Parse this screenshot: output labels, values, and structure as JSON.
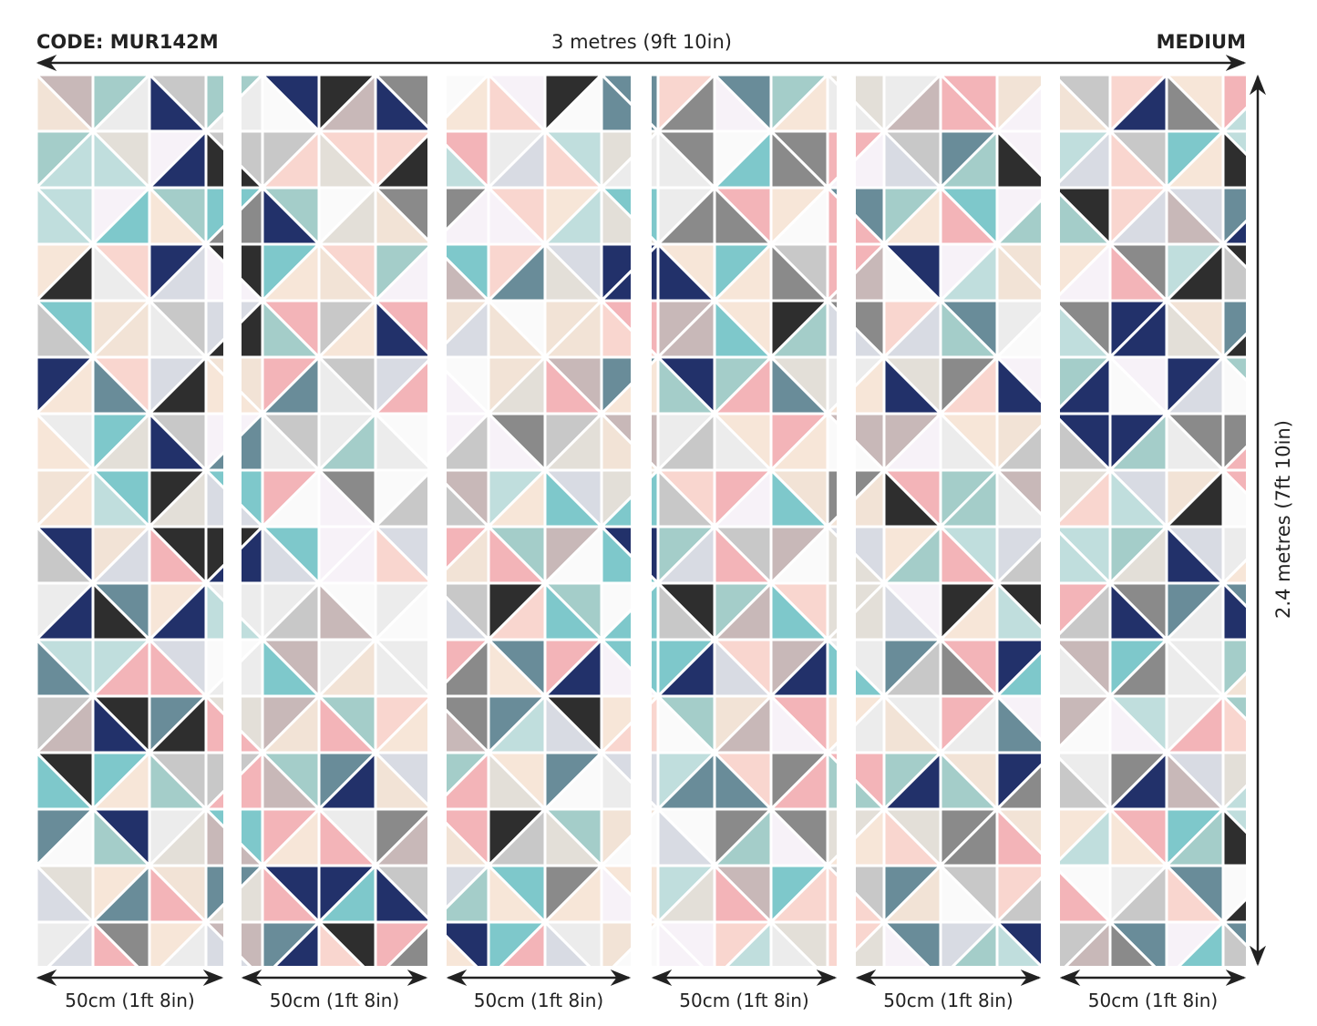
{
  "header": {
    "code": "CODE: MUR142M",
    "total_width": "3 metres (9ft 10in)",
    "size": "MEDIUM"
  },
  "total_height": "2.4 metres (7ft 10in)",
  "panels": [
    {
      "width_label": "50cm (1ft 8in)"
    },
    {
      "width_label": "50cm (1ft 8in)"
    },
    {
      "width_label": "50cm (1ft 8in)"
    },
    {
      "width_label": "50cm (1ft 8in)"
    },
    {
      "width_label": "50cm (1ft 8in)"
    },
    {
      "width_label": "50cm (1ft 8in)"
    }
  ],
  "palette": [
    "#22316a",
    "#2e2e2e",
    "#8a8a8a",
    "#c8c8c8",
    "#ececec",
    "#e3dfd8",
    "#f7e6d8",
    "#f2e3d6",
    "#f7f2f8",
    "#a4cdc9",
    "#c0dedd",
    "#7ec8cb",
    "#698c99",
    "#f3b4b8",
    "#f9d6cf",
    "#c8b8b8",
    "#d8dbe3",
    "#fafafa"
  ]
}
